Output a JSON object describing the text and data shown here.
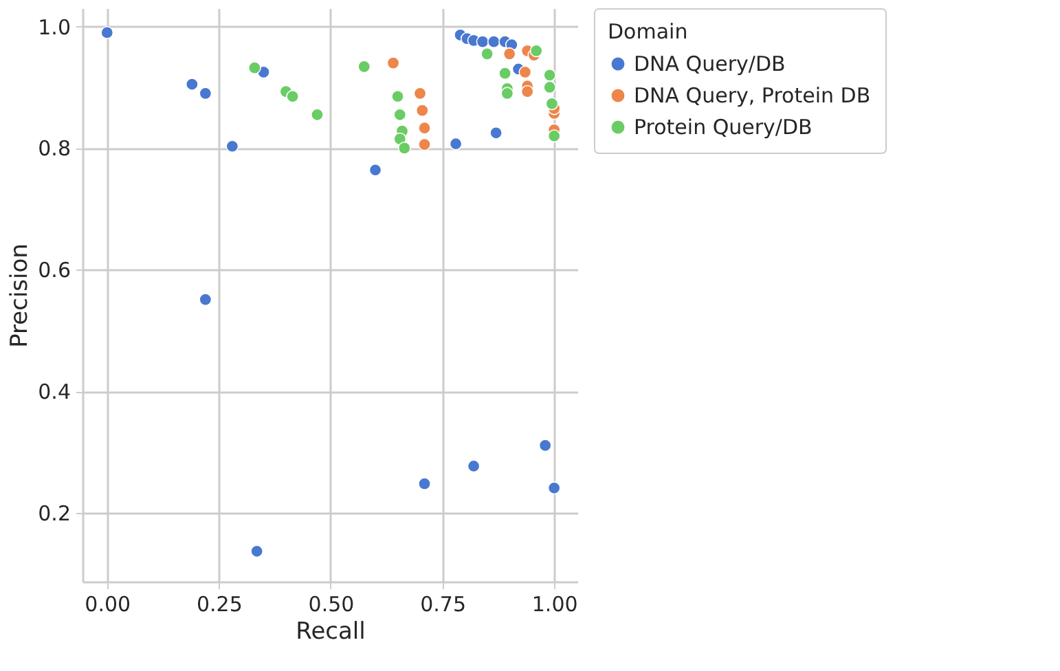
{
  "chart_data": {
    "type": "scatter",
    "xlabel": "Recall",
    "ylabel": "Precision",
    "legend_title": "Domain",
    "xlim": [
      -0.055,
      1.052
    ],
    "ylim": [
      0.087,
      1.03
    ],
    "xticks": [
      {
        "value": 0,
        "label": "0.00"
      },
      {
        "value": 0.25,
        "label": "0.25"
      },
      {
        "value": 0.5,
        "label": "0.50"
      },
      {
        "value": 0.75,
        "label": "0.75"
      },
      {
        "value": 1,
        "label": "1.00"
      }
    ],
    "yticks": [
      {
        "value": 0.2,
        "label": "0.2"
      },
      {
        "value": 0.4,
        "label": "0.4"
      },
      {
        "value": 0.6,
        "label": "0.6"
      },
      {
        "value": 0.8,
        "label": "0.8"
      },
      {
        "value": 1,
        "label": "1.0"
      }
    ],
    "grid": true,
    "legend": "top right",
    "marker": "circle",
    "series": [
      {
        "name": "DNA Query/DB",
        "color": "#4878d0",
        "x": [
          0.0,
          0.19,
          0.22,
          0.28,
          0.22,
          0.35,
          0.6,
          0.78,
          0.87,
          0.71,
          0.82,
          0.98,
          1.0,
          0.335,
          0.79,
          0.805,
          0.82,
          0.84,
          0.865,
          0.89,
          0.905,
          0.92
        ],
        "values": [
          0.99,
          0.905,
          0.89,
          0.803,
          0.551,
          0.925,
          0.764,
          0.807,
          0.825,
          0.248,
          0.277,
          0.311,
          0.241,
          0.137,
          0.986,
          0.98,
          0.977,
          0.975,
          0.975,
          0.975,
          0.97,
          0.93
        ]
      },
      {
        "name": "DNA Query, Protein DB",
        "color": "#ee854a",
        "x": [
          0.64,
          0.7,
          0.705,
          0.71,
          0.71,
          0.9,
          0.94,
          0.955,
          0.935,
          0.94,
          0.94,
          1.0,
          1.0,
          1.0
        ],
        "values": [
          0.94,
          0.89,
          0.862,
          0.833,
          0.806,
          0.955,
          0.96,
          0.953,
          0.925,
          0.902,
          0.893,
          0.857,
          0.83,
          0.865
        ]
      },
      {
        "name": "Protein Query/DB",
        "color": "#6acc64",
        "x": [
          0.33,
          0.4,
          0.415,
          0.47,
          0.575,
          0.65,
          0.655,
          0.66,
          0.655,
          0.665,
          0.85,
          0.89,
          0.895,
          0.895,
          0.96,
          0.99,
          0.99,
          0.995,
          1.0
        ],
        "values": [
          0.932,
          0.893,
          0.885,
          0.855,
          0.934,
          0.885,
          0.855,
          0.828,
          0.815,
          0.8,
          0.955,
          0.923,
          0.898,
          0.89,
          0.96,
          0.92,
          0.9,
          0.873,
          0.82
        ]
      }
    ]
  }
}
